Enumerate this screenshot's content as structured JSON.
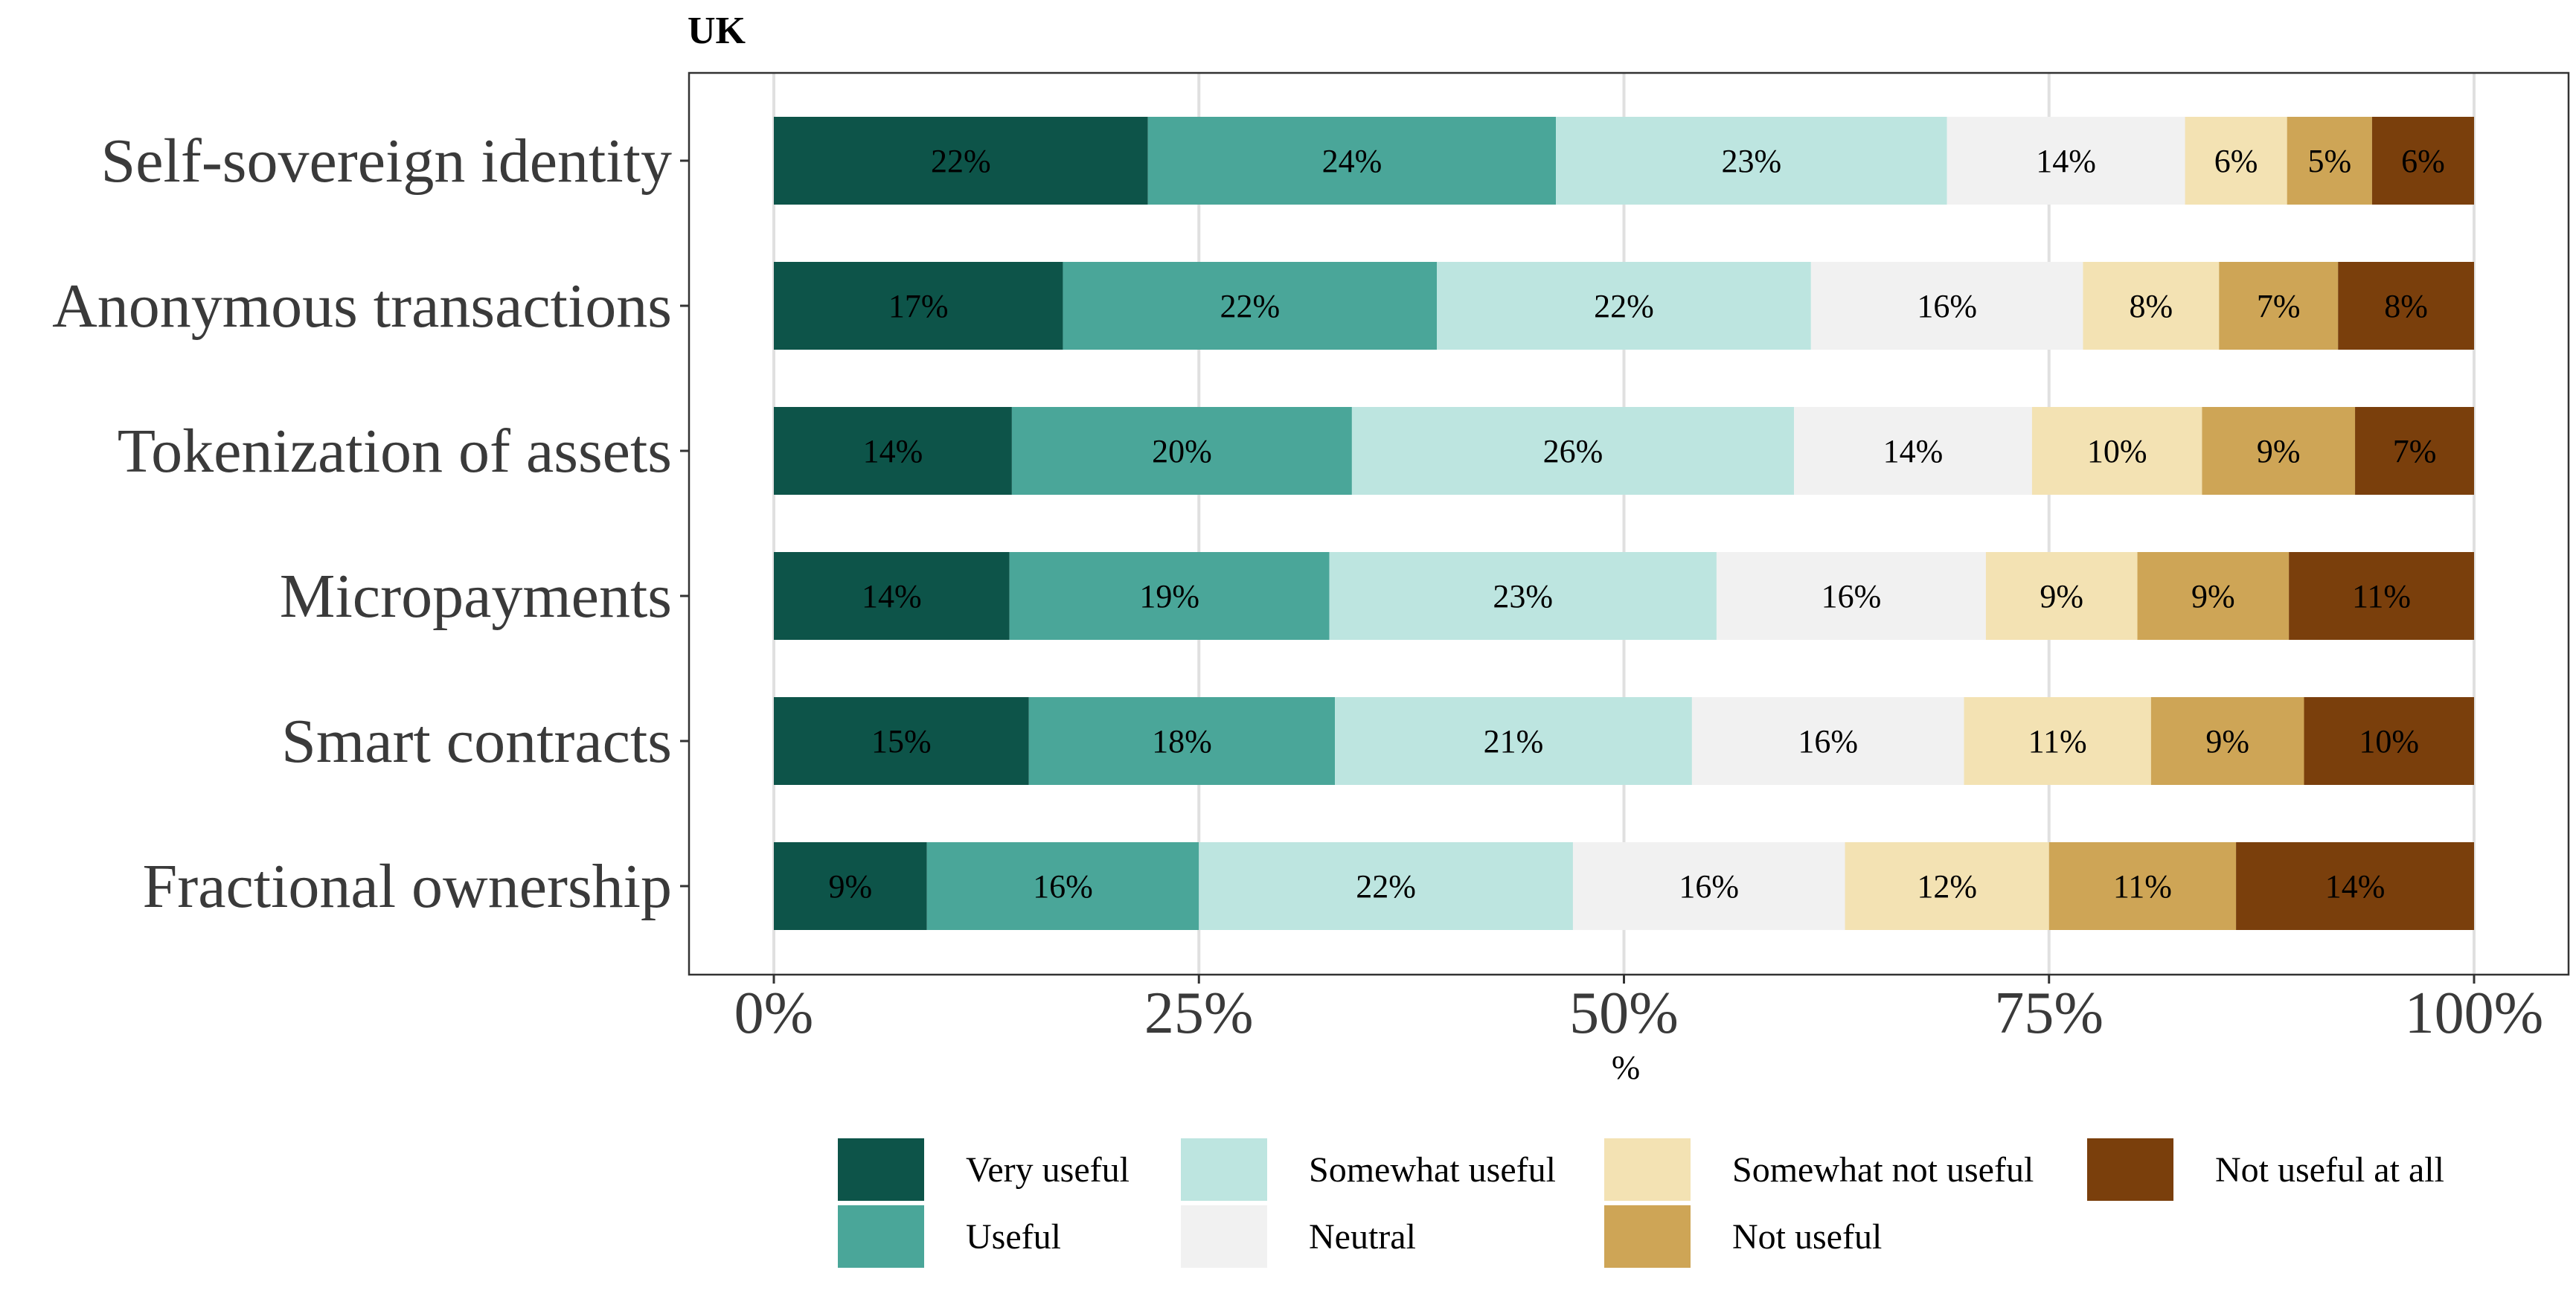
{
  "chart_data": {
    "type": "bar",
    "orientation": "horizontal",
    "stacked": true,
    "title": "UK",
    "xlabel": "%",
    "ylabel": "",
    "xlim": [
      0,
      100
    ],
    "xticks": [
      0,
      25,
      50,
      75,
      100
    ],
    "xtick_labels": [
      "0%",
      "25%",
      "50%",
      "75%",
      "100%"
    ],
    "grid": true,
    "legend_position": "bottom",
    "categories": [
      "Self-sovereign identity",
      "Anonymous transactions",
      "Tokenization of assets",
      "Micropayments",
      "Smart contracts",
      "Fractional ownership"
    ],
    "series": [
      {
        "name": "Very useful",
        "color": "#0d5449",
        "values": [
          22,
          17,
          14,
          14,
          15,
          9
        ]
      },
      {
        "name": "Useful",
        "color": "#4aa699",
        "values": [
          24,
          22,
          20,
          19,
          18,
          16
        ]
      },
      {
        "name": "Somewhat useful",
        "color": "#bde5e0",
        "values": [
          23,
          22,
          26,
          23,
          21,
          22
        ]
      },
      {
        "name": "Neutral",
        "color": "#f1f1f1",
        "values": [
          14,
          16,
          14,
          16,
          16,
          16
        ]
      },
      {
        "name": "Somewhat not useful",
        "color": "#f3e2b3",
        "values": [
          6,
          8,
          10,
          9,
          11,
          12
        ]
      },
      {
        "name": "Not useful",
        "color": "#cea556",
        "values": [
          5,
          7,
          9,
          9,
          9,
          11
        ]
      },
      {
        "name": "Not useful at all",
        "color": "#7a3f0c",
        "values": [
          6,
          8,
          7,
          11,
          10,
          14
        ]
      }
    ]
  }
}
